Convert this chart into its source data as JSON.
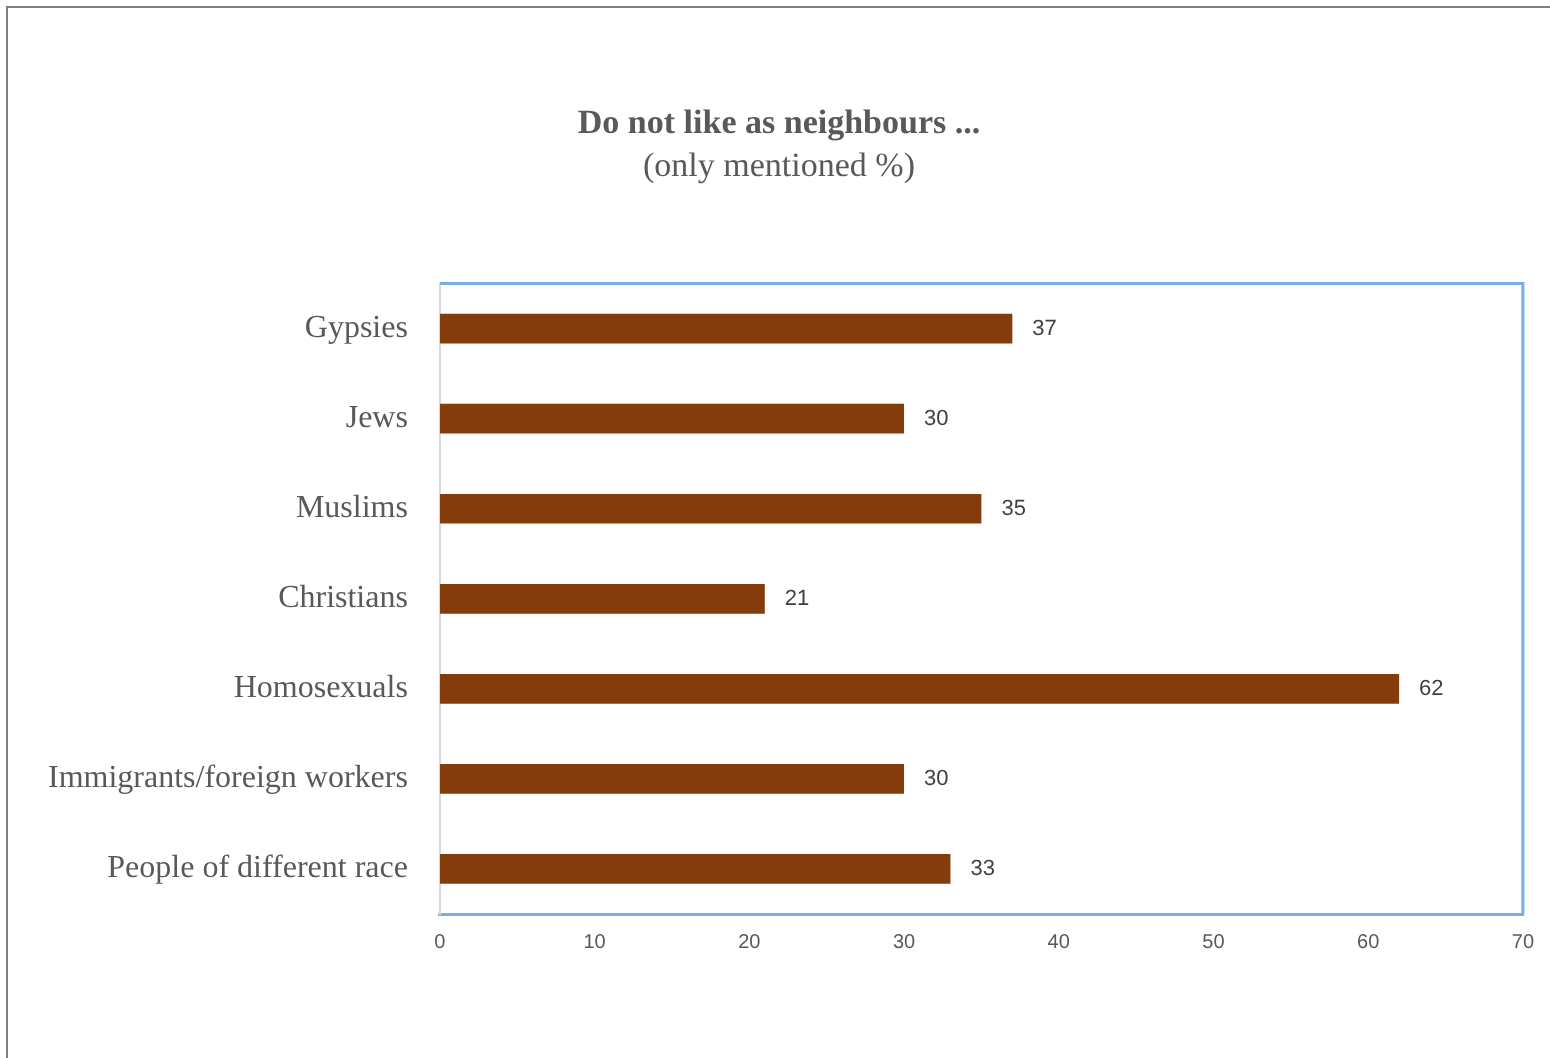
{
  "chart_data": {
    "type": "bar",
    "orientation": "horizontal",
    "title": "Do not like as neighbours ...",
    "subtitle": "(only mentioned %)",
    "categories": [
      "Gypsies",
      "Jews",
      "Muslims",
      "Christians",
      "Homosexuals",
      "Immigrants/foreign workers",
      "People of different race"
    ],
    "values": [
      37,
      30,
      35,
      21,
      62,
      30,
      33
    ],
    "color": "#843c0c",
    "data_labels": true,
    "xlim": [
      0,
      70
    ],
    "xticks": [
      0,
      10,
      20,
      30,
      40,
      50,
      60,
      70
    ]
  }
}
